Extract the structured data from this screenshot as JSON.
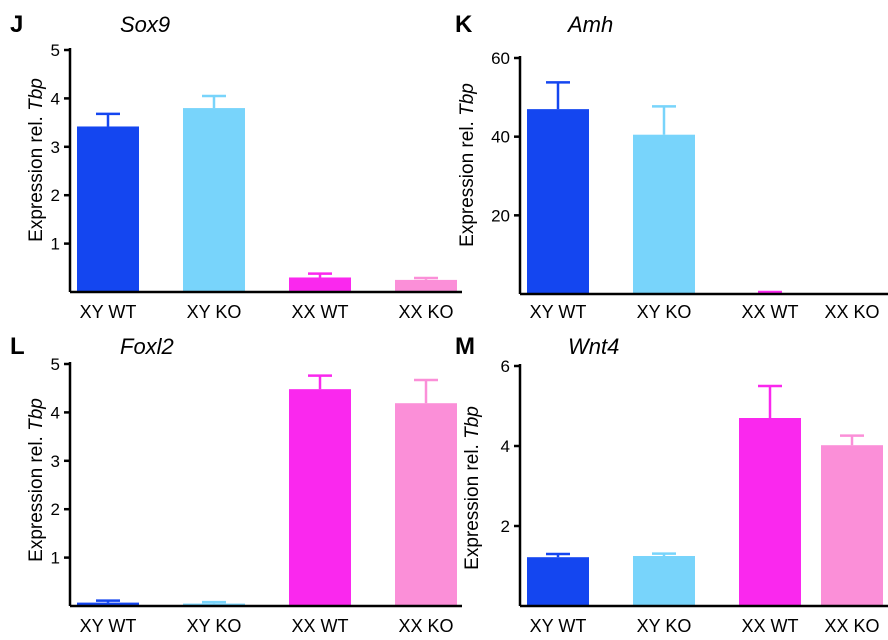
{
  "colors": {
    "XY WT": "#1446f0",
    "XY KO": "#78d4fb",
    "XX WT": "#fa28ee",
    "XX KO": "#fb8fd8"
  },
  "chart_data": [
    {
      "panel": "J",
      "title": "Sox9",
      "type": "bar",
      "ylabel": "Expression rel.",
      "ylabel_gene": "Tbp",
      "categories": [
        "XY WT",
        "XY KO",
        "XX WT",
        "XX KO"
      ],
      "values": [
        3.42,
        3.8,
        0.3,
        0.25
      ],
      "errors": [
        0.26,
        0.25,
        0.08,
        0.04
      ],
      "ylim": [
        0,
        5
      ],
      "yticks": [
        1,
        2,
        3,
        4,
        5
      ]
    },
    {
      "panel": "K",
      "title": "Amh",
      "type": "bar",
      "ylabel": "Expression rel.",
      "ylabel_gene": "Tbp",
      "categories": [
        "XY WT",
        "XY KO",
        "XX WT",
        "XX KO"
      ],
      "values": [
        47,
        40.5,
        0.2,
        0.05
      ],
      "errors": [
        6.8,
        7.2,
        0.3,
        0
      ],
      "ylim": [
        0,
        60
      ],
      "yticks": [
        20,
        40,
        60
      ]
    },
    {
      "panel": "L",
      "title": "Foxl2",
      "type": "bar",
      "ylabel": "Expression rel.",
      "ylabel_gene": "Tbp",
      "categories": [
        "XY WT",
        "XY KO",
        "XX WT",
        "XX KO"
      ],
      "values": [
        0.07,
        0.05,
        4.48,
        4.19
      ],
      "errors": [
        0.04,
        0.03,
        0.28,
        0.48
      ],
      "ylim": [
        0,
        5
      ],
      "yticks": [
        1,
        2,
        3,
        4,
        5
      ]
    },
    {
      "panel": "M",
      "title": "Wnt4",
      "type": "bar",
      "ylabel": "Expression rel.",
      "ylabel_gene": "Tbp",
      "categories": [
        "XY WT",
        "XY KO",
        "XX WT",
        "XX KO"
      ],
      "values": [
        1.22,
        1.25,
        4.7,
        4.02
      ],
      "errors": [
        0.08,
        0.06,
        0.8,
        0.24
      ],
      "ylim": [
        0,
        6
      ],
      "yticks": [
        2,
        4,
        6
      ]
    }
  ]
}
